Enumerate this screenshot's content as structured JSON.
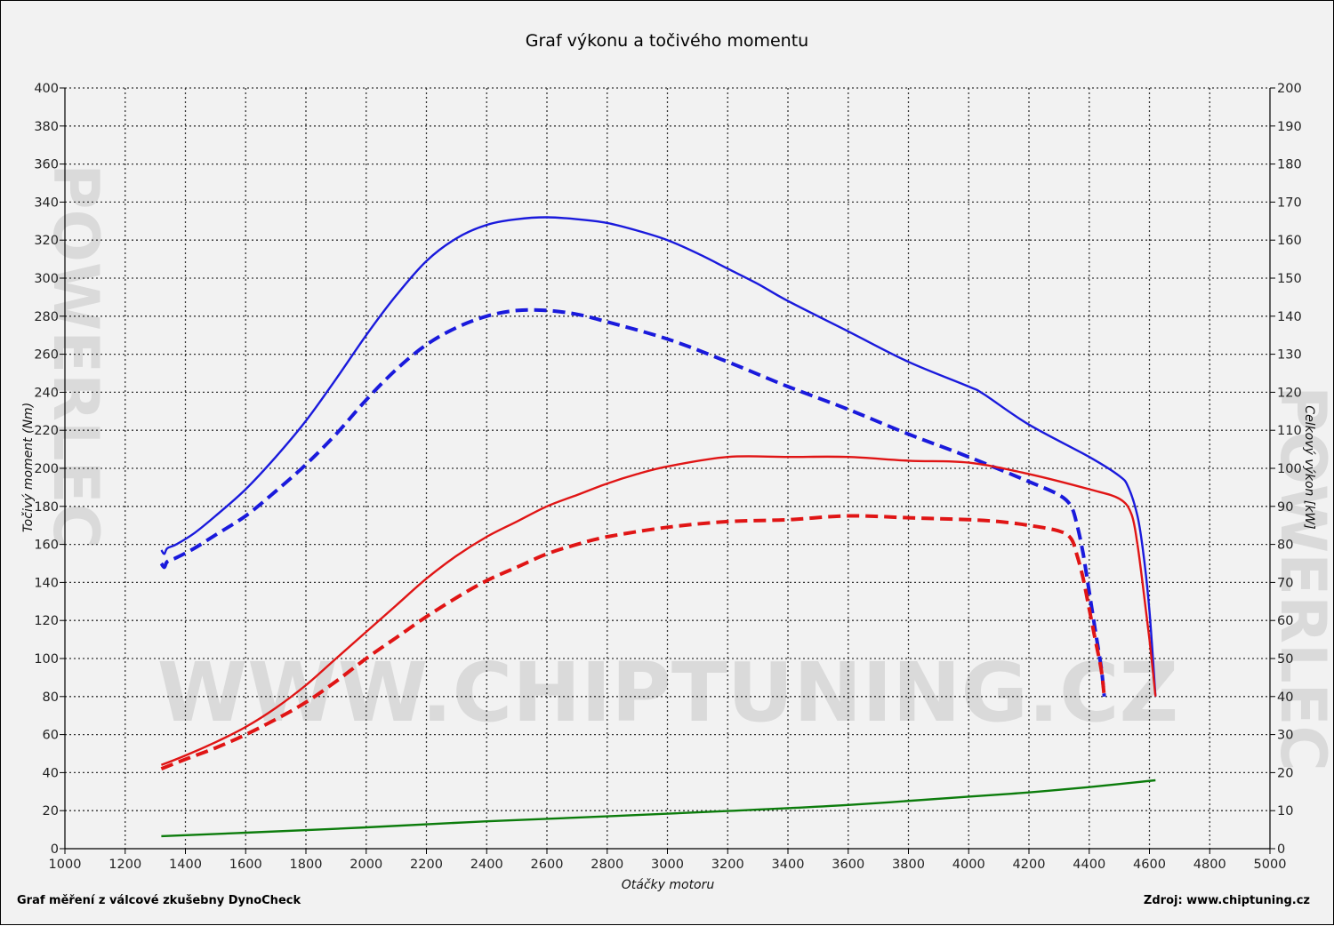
{
  "footer": {
    "left": "Graf měření z válcové zkušebny DynoCheck",
    "right": "Zdroj: www.chiptuning.cz"
  },
  "watermark": {
    "text": "WWW.CHIPTUNING.CZ",
    "side_text": "POWERLEC"
  },
  "chart_data": {
    "type": "line",
    "title": "Graf výkonu a točivého momentu",
    "xlabel": "Otáčky motoru",
    "ylabel": "Točivý moment (Nm)",
    "y2label": "Celkový výkon [kW]",
    "xlim": [
      1000,
      5000
    ],
    "ylim": [
      0,
      400
    ],
    "y2lim": [
      0,
      200
    ],
    "x_ticks": [
      1000,
      1200,
      1400,
      1600,
      1800,
      2000,
      2200,
      2400,
      2600,
      2800,
      3000,
      3200,
      3400,
      3600,
      3800,
      4000,
      4200,
      4400,
      4600,
      4800,
      5000
    ],
    "y_ticks": [
      0,
      20,
      40,
      60,
      80,
      100,
      120,
      140,
      160,
      180,
      200,
      220,
      240,
      260,
      280,
      300,
      320,
      340,
      360,
      380,
      400
    ],
    "y2_ticks": [
      0,
      10,
      20,
      30,
      40,
      50,
      60,
      70,
      80,
      90,
      100,
      110,
      120,
      130,
      140,
      150,
      160,
      170,
      180,
      190,
      200
    ],
    "grid": true,
    "series": [
      {
        "axis": "left",
        "color": "#1a1adc",
        "dashed": false,
        "x": [
          1320,
          1330,
          1340,
          1370,
          1430,
          1500,
          1600,
          1700,
          1800,
          1900,
          2000,
          2100,
          2200,
          2300,
          2400,
          2500,
          2600,
          2700,
          2800,
          2900,
          3000,
          3100,
          3200,
          3300,
          3400,
          3600,
          3800,
          4000,
          4050,
          4200,
          4400,
          4500,
          4530,
          4560,
          4580,
          4600,
          4620
        ],
        "y": [
          157,
          155,
          158,
          160,
          166,
          175,
          189,
          206,
          225,
          247,
          270,
          291,
          309,
          321,
          328,
          331,
          332,
          331,
          329,
          325,
          320,
          313,
          305,
          297,
          288,
          272,
          256,
          243,
          239,
          223,
          206,
          196,
          190,
          175,
          155,
          125,
          80
        ]
      },
      {
        "axis": "left",
        "color": "#1a1adc",
        "dashed": true,
        "x": [
          1320,
          1330,
          1340,
          1370,
          1430,
          1500,
          1600,
          1700,
          1800,
          1900,
          2000,
          2100,
          2200,
          2300,
          2400,
          2500,
          2600,
          2700,
          2800,
          3000,
          3200,
          3400,
          3600,
          3800,
          4000,
          4200,
          4300,
          4340,
          4360,
          4380,
          4400,
          4420,
          4440,
          4450
        ],
        "y": [
          150,
          148,
          151,
          153,
          158,
          165,
          175,
          188,
          202,
          218,
          236,
          252,
          265,
          274,
          280,
          283,
          283,
          281,
          277,
          268,
          256,
          243,
          231,
          218,
          206,
          193,
          186,
          180,
          170,
          155,
          135,
          115,
          95,
          80
        ]
      },
      {
        "axis": "right",
        "color": "#e01515",
        "dashed": false,
        "x": [
          1320,
          1400,
          1500,
          1600,
          1700,
          1800,
          1900,
          2000,
          2100,
          2200,
          2300,
          2400,
          2500,
          2600,
          2700,
          2800,
          2900,
          3000,
          3200,
          3400,
          3600,
          3800,
          4000,
          4200,
          4400,
          4500,
          4540,
          4560,
          4580,
          4600,
          4620
        ],
        "y": [
          22,
          24.5,
          28,
          32,
          37,
          43,
          50,
          57,
          64,
          71,
          77,
          82,
          86,
          90,
          93,
          96,
          98.5,
          100.5,
          103,
          103,
          103,
          102,
          101.5,
          98.5,
          94.5,
          92,
          88,
          80,
          68,
          55,
          40
        ]
      },
      {
        "axis": "right",
        "color": "#e01515",
        "dashed": true,
        "x": [
          1320,
          1400,
          1500,
          1600,
          1700,
          1800,
          1900,
          2000,
          2100,
          2200,
          2300,
          2400,
          2500,
          2600,
          2700,
          2800,
          3000,
          3200,
          3400,
          3600,
          3800,
          4000,
          4100,
          4200,
          4300,
          4340,
          4360,
          4380,
          4400,
          4420,
          4440,
          4450
        ],
        "y": [
          21,
          23.5,
          26.5,
          30,
          34,
          38.5,
          44,
          50,
          55.5,
          61,
          66,
          70.5,
          74,
          77.5,
          80,
          82,
          84.5,
          86,
          86.5,
          87.5,
          87,
          86.5,
          86,
          85,
          83.5,
          81.5,
          77,
          71,
          63,
          55,
          47,
          40
        ]
      },
      {
        "axis": "right",
        "color": "#0c7c0c",
        "dashed": false,
        "x": [
          1320,
          1600,
          2000,
          2400,
          2800,
          3200,
          3600,
          4000,
          4200,
          4400,
          4620
        ],
        "y": [
          3.3,
          4.2,
          5.6,
          7.2,
          8.5,
          9.9,
          11.5,
          13.7,
          14.8,
          16.2,
          18
        ]
      }
    ]
  }
}
